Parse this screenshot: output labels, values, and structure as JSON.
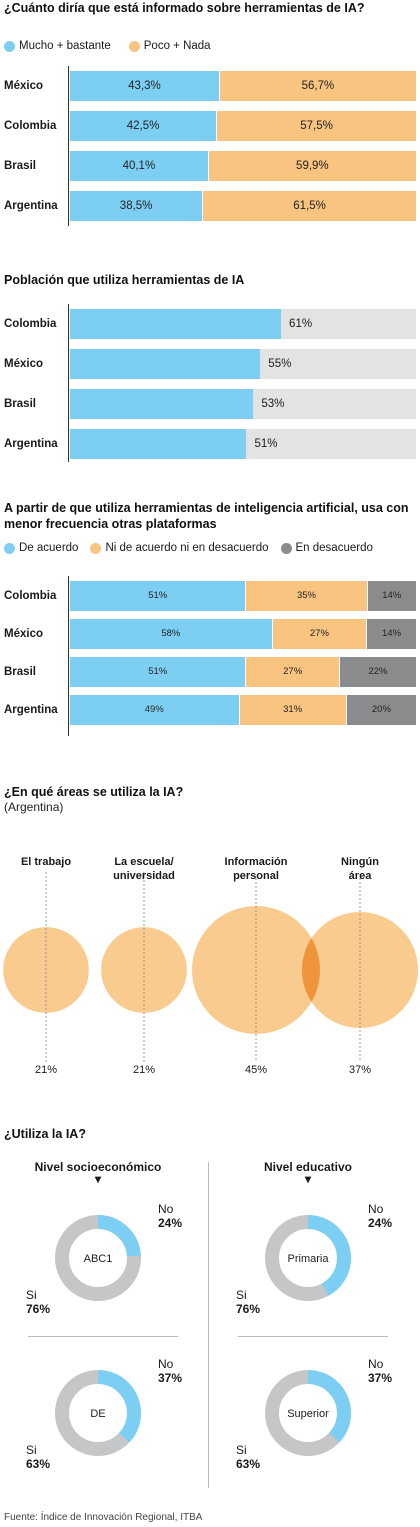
{
  "chart_data": [
    {
      "type": "bar",
      "title": "¿Cuánto diría que está informado sobre herramientas de IA?",
      "legend": [
        "Mucho + bastante",
        "Poco + Nada"
      ],
      "colors": [
        "#7ccff2",
        "#f8c47f"
      ],
      "categories": [
        "México",
        "Colombia",
        "Brasil",
        "Argentina"
      ],
      "series": [
        {
          "name": "Mucho + bastante",
          "values": [
            43.3,
            42.5,
            40.1,
            38.5
          ],
          "labels": [
            "43,3%",
            "42,5%",
            "40,1%",
            "38,5%"
          ]
        },
        {
          "name": "Poco + Nada",
          "values": [
            56.7,
            57.5,
            59.9,
            61.5
          ],
          "labels": [
            "56,7%",
            "57,5%",
            "59,9%",
            "61,5%"
          ]
        }
      ]
    },
    {
      "type": "bar",
      "title": "Población que utiliza herramientas de IA",
      "colors": [
        "#7ccff2",
        "#e3e3e3"
      ],
      "categories": [
        "Colombia",
        "México",
        "Brasil",
        "Argentina"
      ],
      "values": [
        61,
        55,
        53,
        51
      ],
      "labels": [
        "61%",
        "55%",
        "53%",
        "51%"
      ]
    },
    {
      "type": "bar",
      "title": "A partir de que utiliza herramientas de inteligencia artificial, usa con menor frecuencia otras plataformas",
      "legend": [
        "De acuerdo",
        "Ni de acuerdo ni en desacuerdo",
        "En desacuerdo"
      ],
      "colors": [
        "#7ccff2",
        "#f8c47f",
        "#8a8b8d"
      ],
      "categories": [
        "Colombia",
        "México",
        "Brasil",
        "Argentina"
      ],
      "series": [
        {
          "name": "De acuerdo",
          "values": [
            51,
            58,
            51,
            49
          ],
          "labels": [
            "51%",
            "58%",
            "51%",
            "49%"
          ]
        },
        {
          "name": "Ni de acuerdo ni en desacuerdo",
          "values": [
            35,
            27,
            27,
            31
          ],
          "labels": [
            "35%",
            "27%",
            "27%",
            "31%"
          ]
        },
        {
          "name": "En desacuerdo",
          "values": [
            14,
            14,
            22,
            20
          ],
          "labels": [
            "14%",
            "14%",
            "22%",
            "20%"
          ]
        }
      ]
    },
    {
      "type": "bubble",
      "title": "¿En qué áreas se utiliza la IA?",
      "subtitle": "(Argentina)",
      "categories": [
        "El trabajo",
        "La escuela/ universidad",
        "Información personal",
        "Ningún área"
      ],
      "values": [
        21,
        21,
        45,
        37
      ],
      "labels": [
        "21%",
        "21%",
        "45%",
        "37%"
      ],
      "color": "#f8c47f"
    },
    {
      "type": "pie",
      "title": "¿Utiliza la IA?",
      "groups": [
        {
          "heading": "Nivel socioeconómico",
          "charts": [
            {
              "center": "ABC1",
              "no": 24,
              "si": 76,
              "no_label": "24%",
              "si_label": "76%"
            },
            {
              "center": "DE",
              "no": 37,
              "si": 63,
              "no_label": "37%",
              "si_label": "63%"
            }
          ]
        },
        {
          "heading": "Nivel educativo",
          "charts": [
            {
              "center": "Primaria",
              "no": 24,
              "si": 76,
              "no_label": "24%",
              "si_label": "76%"
            },
            {
              "center": "Superior",
              "no": 37,
              "si": 63,
              "no_label": "37%",
              "si_label": "63%"
            }
          ]
        }
      ],
      "labels": {
        "no": "No",
        "si": "Si"
      },
      "colors": {
        "no": "#7ccff2",
        "si": "#c5c6c8"
      }
    }
  ],
  "source": "Fuente: Índice de Innovación Regional, ITBA"
}
